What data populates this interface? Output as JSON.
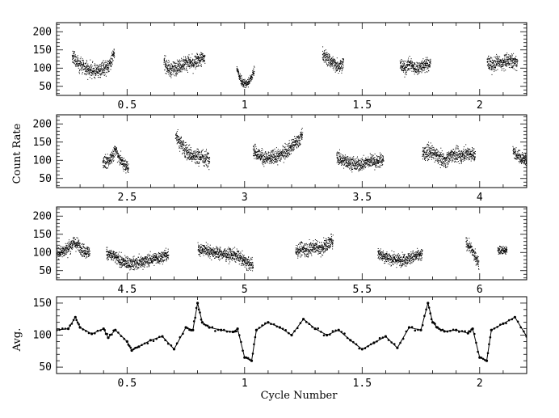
{
  "chart_data": [
    {
      "type": "scatter",
      "panel": 1,
      "ylabel": "",
      "xlim": [
        0.2,
        2.2
      ],
      "ylim": [
        25,
        225
      ],
      "xticks": [
        0.5,
        1,
        1.5,
        2
      ],
      "xtick_labels": [
        "0.5",
        "1",
        "1.5",
        "2"
      ],
      "yticks": [
        50,
        100,
        150,
        200
      ],
      "ytick_labels": [
        "50",
        "100",
        "150",
        "200"
      ],
      "segments": [
        {
          "x_range": [
            0.265,
            0.445
          ],
          "profile": [
            130,
            118,
            100,
            95,
            92,
            98,
            108,
            140
          ],
          "noise": 14
        },
        {
          "x_range": [
            0.655,
            0.83
          ],
          "profile": [
            120,
            95,
            102,
            110,
            118,
            112,
            125,
            128
          ],
          "noise": 14
        },
        {
          "x_range": [
            0.965,
            1.04
          ],
          "profile": [
            100,
            78,
            62,
            58,
            62,
            75,
            95
          ],
          "noise": 9
        },
        {
          "x_range": [
            1.33,
            1.42
          ],
          "profile": [
            140,
            128,
            120,
            110,
            108,
            115
          ],
          "noise": 14
        },
        {
          "x_range": [
            1.66,
            1.79
          ],
          "profile": [
            110,
            100,
            115,
            98,
            105,
            110,
            112
          ],
          "noise": 13
        },
        {
          "x_range": [
            2.03,
            2.16
          ],
          "profile": [
            120,
            108,
            118,
            112,
            122,
            120,
            115
          ],
          "noise": 14
        }
      ]
    },
    {
      "type": "scatter",
      "panel": 2,
      "ylabel": "Count Rate",
      "xlim": [
        2.2,
        4.2
      ],
      "ylim": [
        25,
        225
      ],
      "xticks": [
        2.5,
        3,
        3.5,
        4
      ],
      "xtick_labels": [
        "2.5",
        "3",
        "3.5",
        "4"
      ],
      "yticks": [
        50,
        100,
        150,
        200
      ],
      "ytick_labels": [
        "50",
        "100",
        "150",
        "200"
      ],
      "segments": [
        {
          "x_range": [
            2.395,
            2.505
          ],
          "profile": [
            100,
            92,
            110,
            130,
            105,
            88,
            82
          ],
          "noise": 13
        },
        {
          "x_range": [
            2.705,
            2.85
          ],
          "profile": [
            170,
            148,
            130,
            118,
            110,
            112,
            105,
            110
          ],
          "noise": 16
        },
        {
          "x_range": [
            3.035,
            3.245
          ],
          "profile": [
            130,
            115,
            105,
            108,
            112,
            122,
            135,
            150,
            170
          ],
          "noise": 14
        },
        {
          "x_range": [
            3.39,
            3.59
          ],
          "profile": [
            110,
            100,
            95,
            88,
            92,
            100,
            96,
            105
          ],
          "noise": 13
        },
        {
          "x_range": [
            3.755,
            3.98
          ],
          "profile": [
            118,
            125,
            112,
            100,
            118,
            112,
            122,
            115
          ],
          "noise": 14
        },
        {
          "x_range": [
            4.14,
            4.2
          ],
          "profile": [
            125,
            110,
            100
          ],
          "noise": 12
        }
      ]
    },
    {
      "type": "scatter",
      "panel": 3,
      "ylabel": "",
      "xlim": [
        4.2,
        6.2
      ],
      "ylim": [
        25,
        225
      ],
      "xticks": [
        4.5,
        5,
        5.5,
        6
      ],
      "xtick_labels": [
        "4.5",
        "5",
        "5.5",
        "6"
      ],
      "segments": [
        {
          "x_range": [
            4.2,
            4.34
          ],
          "profile": [
            100,
            105,
            112,
            128,
            120,
            105,
            100
          ],
          "noise": 13
        },
        {
          "x_range": [
            4.41,
            4.675
          ],
          "profile": [
            100,
            90,
            75,
            70,
            72,
            78,
            82,
            88,
            95
          ],
          "noise": 12
        },
        {
          "x_range": [
            4.8,
            5.035
          ],
          "profile": [
            110,
            108,
            102,
            98,
            95,
            92,
            75,
            65
          ],
          "noise": 12
        },
        {
          "x_range": [
            5.215,
            5.375
          ],
          "profile": [
            105,
            112,
            108,
            118,
            112,
            122,
            135
          ],
          "noise": 14
        },
        {
          "x_range": [
            5.565,
            5.755
          ],
          "profile": [
            100,
            90,
            82,
            80,
            84,
            90,
            95
          ],
          "noise": 12
        },
        {
          "x_range": [
            5.94,
            5.995
          ],
          "profile": [
            128,
            115,
            92,
            72
          ],
          "noise": 11
        },
        {
          "x_range": [
            6.075,
            6.115
          ],
          "profile": [
            110,
            105,
            108
          ],
          "noise": 9
        }
      ],
      "yticks": [
        50,
        100,
        150,
        200
      ],
      "ytick_labels": [
        "50",
        "100",
        "150",
        "200"
      ]
    },
    {
      "type": "line",
      "panel": 4,
      "ylabel": "Avg.",
      "xlabel": "Cycle Number",
      "xlim": [
        0.2,
        2.2
      ],
      "ylim": [
        40,
        160
      ],
      "xticks": [
        0.5,
        1,
        1.5,
        2
      ],
      "xtick_labels": [
        "0.5",
        "1",
        "1.5",
        "2"
      ],
      "yticks": [
        50,
        100,
        150
      ],
      "ytick_labels": [
        "50",
        "100",
        "150"
      ],
      "x": [
        0.2,
        0.25,
        0.28,
        0.3,
        0.35,
        0.4,
        0.42,
        0.45,
        0.5,
        0.52,
        0.55,
        0.6,
        0.65,
        0.7,
        0.75,
        0.78,
        0.8,
        0.82,
        0.85,
        0.9,
        0.95,
        0.97,
        1.0,
        1.03,
        1.05,
        1.1,
        1.15,
        1.2,
        1.25,
        1.3,
        1.35,
        1.4,
        1.45,
        1.5,
        1.55,
        1.6,
        1.65,
        1.7,
        1.75,
        1.78,
        1.8,
        1.82,
        1.85,
        1.9,
        1.95,
        1.97,
        2.0,
        2.03,
        2.05,
        2.1,
        2.15,
        2.2
      ],
      "y": [
        108,
        110,
        128,
        112,
        102,
        110,
        96,
        108,
        90,
        76,
        82,
        92,
        98,
        78,
        112,
        108,
        150,
        120,
        112,
        108,
        105,
        110,
        65,
        60,
        108,
        120,
        112,
        100,
        125,
        110,
        100,
        108,
        92,
        78,
        88,
        98,
        80,
        112,
        108,
        150,
        120,
        112,
        106,
        108,
        103,
        110,
        65,
        60,
        108,
        118,
        128,
        98
      ]
    }
  ]
}
